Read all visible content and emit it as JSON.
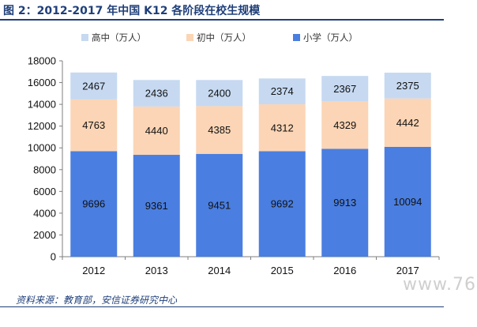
{
  "header": {
    "title": "图 2：2012-2017 年中国 K12 各阶段在校生规模"
  },
  "footer": {
    "source": "资料来源：教育部，安信证券研究中心"
  },
  "watermark": "www.76",
  "colors": {
    "high": "#c6d9f1",
    "middle": "#fbd5b5",
    "primary": "#4a7ee0",
    "title": "#1f3f7a"
  },
  "chart_data": {
    "type": "bar",
    "stacked": true,
    "categories": [
      "2012",
      "2013",
      "2014",
      "2015",
      "2016",
      "2017"
    ],
    "series": [
      {
        "name": "小学（万人）",
        "key": "primary",
        "values": [
          9696,
          9361,
          9451,
          9692,
          9913,
          10094
        ]
      },
      {
        "name": "初中（万人）",
        "key": "middle",
        "values": [
          4763,
          4440,
          4385,
          4312,
          4329,
          4442
        ]
      },
      {
        "name": "高中（万人）",
        "key": "high",
        "values": [
          2467,
          2436,
          2400,
          2374,
          2367,
          2375
        ]
      }
    ],
    "legend_order": [
      "high",
      "middle",
      "primary"
    ],
    "legend_position": "top",
    "ylim": [
      0,
      18000
    ],
    "yticks": [
      "0",
      "2000",
      "4000",
      "6000",
      "8000",
      "10000",
      "12000",
      "14000",
      "16000",
      "18000"
    ],
    "grid": false
  }
}
